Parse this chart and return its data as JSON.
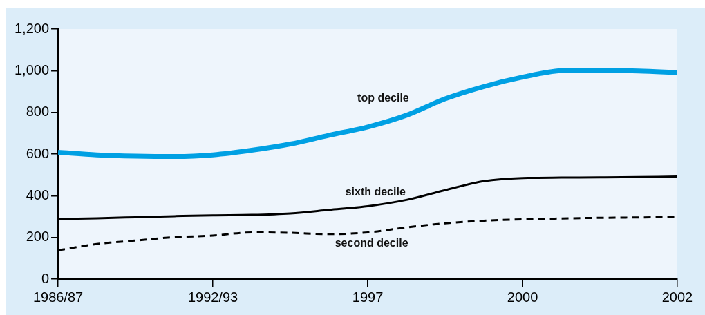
{
  "chart_data": {
    "type": "line",
    "categories": [
      "1986/87",
      null,
      null,
      null,
      "1992/93",
      null,
      null,
      null,
      "1997",
      null,
      null,
      null,
      "2000",
      null,
      null,
      null,
      "2002"
    ],
    "ylim": [
      0,
      1200
    ],
    "yticks": [
      0,
      200,
      400,
      600,
      800,
      {
        "value": 1000,
        "label": "1,000"
      },
      {
        "value": 1200,
        "label": "1,200"
      }
    ],
    "grid": false,
    "legend": false,
    "marker": "none",
    "series": [
      {
        "color": "#00a0e3",
        "line_style": "solid",
        "values": [
          608,
          596,
          590,
          588,
          596,
          618,
          648,
          690,
          730,
          786,
          865,
          924,
          969,
          1000,
          1003,
          999,
          991
        ]
      },
      {
        "color": "#000000",
        "line_style": "solid",
        "values": [
          288,
          292,
          297,
          302,
          306,
          308,
          315,
          332,
          350,
          380,
          427,
          470,
          485,
          487,
          488,
          490,
          492
        ]
      },
      {
        "color": "#000000",
        "line_style": "dashed",
        "values": [
          138,
          168,
          185,
          201,
          209,
          224,
          222,
          216,
          224,
          248,
          268,
          280,
          287,
          291,
          294,
          296,
          298
        ]
      }
    ],
    "annotations": [
      "top decile",
      "sixth decile",
      "second decile"
    ]
  }
}
